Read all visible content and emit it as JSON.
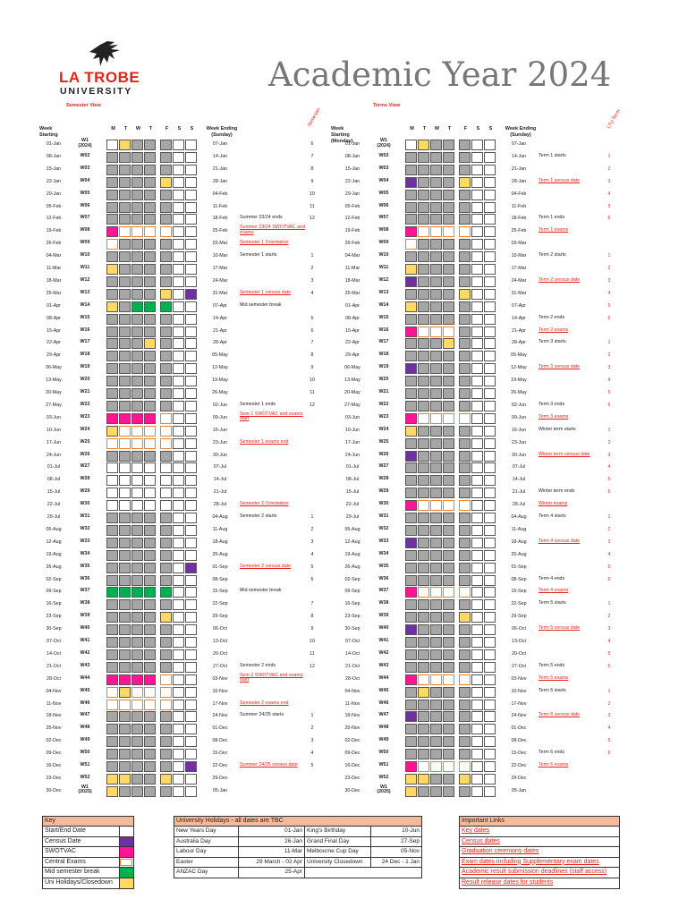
{
  "logo": {
    "line1": "LA TROBE",
    "line2": "UNIVERSITY"
  },
  "title": "Academic Year 2024",
  "semester_view": {
    "label": "Semester View",
    "rot_label": "Semester"
  },
  "terms_view": {
    "label": "Terms View",
    "rot_label": "LTU Term"
  },
  "headers": {
    "week_starting": "Week Starting",
    "week_starting_mon": "Week Starting (Monday)",
    "days": [
      "M",
      "T",
      "W",
      "T",
      "F",
      "S",
      "S"
    ],
    "week_ending": "Week Ending (Sunday)"
  },
  "colors": {
    "start_end": "#ffffff",
    "census": "#7030a0",
    "swotvac": "#ff1493",
    "central_exams": "#ffffff",
    "mid_break": "#00b050",
    "holidays": "#ffd966",
    "grey": "#a6a6a6",
    "exam_border": "#f4801f"
  },
  "weeks": [
    {
      "start": "01-Jan",
      "week": "W1 (2024)",
      "end": "07-Jan",
      "sem_event": "",
      "sem_num": "6",
      "term_event": "",
      "term_num": ""
    },
    {
      "start": "08-Jan",
      "week": "W02",
      "end": "14-Jan",
      "sem_event": "",
      "sem_num": "7",
      "term_event": "Term 1 starts",
      "term_num": "1"
    },
    {
      "start": "15-Jan",
      "week": "W03",
      "end": "21-Jan",
      "sem_event": "",
      "sem_num": "8",
      "term_event": "",
      "term_num": "2"
    },
    {
      "start": "22-Jan",
      "week": "W04",
      "end": "28-Jan",
      "sem_event": "",
      "sem_num": "9",
      "term_event": "Term 1 census date",
      "term_num": "3"
    },
    {
      "start": "29-Jan",
      "week": "W05",
      "end": "04-Feb",
      "sem_event": "",
      "sem_num": "10",
      "term_event": "",
      "term_num": "4"
    },
    {
      "start": "05-Feb",
      "week": "W06",
      "end": "11-Feb",
      "sem_event": "",
      "sem_num": "11",
      "term_event": "",
      "term_num": "5"
    },
    {
      "start": "12-Feb",
      "week": "W07",
      "end": "18-Feb",
      "sem_event": "Summer 23/24 ends",
      "sem_num": "12",
      "term_event": "Term 1 ends",
      "term_num": "6"
    },
    {
      "start": "19-Feb",
      "week": "W08",
      "end": "25-Feb",
      "sem_event": "Summer 23/24 SWOTVAC and exams",
      "sem_num": "",
      "term_event": "Term 1 exams",
      "term_num": ""
    },
    {
      "start": "26-Feb",
      "week": "W09",
      "end": "03-Mar",
      "sem_event": "Semester 1 Orientation",
      "sem_num": "",
      "term_event": "",
      "term_num": ""
    },
    {
      "start": "04-Mar",
      "week": "W10",
      "end": "10-Mar",
      "sem_event": "Semester 1 starts",
      "sem_num": "1",
      "term_event": "Term 2 starts",
      "term_num": "1"
    },
    {
      "start": "11-Mar",
      "week": "W11",
      "end": "17-Mar",
      "sem_event": "",
      "sem_num": "2",
      "term_event": "",
      "term_num": "2"
    },
    {
      "start": "18-Mar",
      "week": "W12",
      "end": "24-Mar",
      "sem_event": "",
      "sem_num": "3",
      "term_event": "Term 2 census date",
      "term_num": "3"
    },
    {
      "start": "25-Mar",
      "week": "W13",
      "end": "31-Mar",
      "sem_event": "Semester 1 census date",
      "sem_num": "4",
      "term_event": "",
      "term_num": "4"
    },
    {
      "start": "01-Apr",
      "week": "W14",
      "end": "07-Apr",
      "sem_event": "Mid semester break",
      "sem_num": "",
      "term_event": "",
      "term_num": "5"
    },
    {
      "start": "08-Apr",
      "week": "W15",
      "end": "14-Apr",
      "sem_event": "",
      "sem_num": "5",
      "term_event": "Term 2 ends",
      "term_num": "6"
    },
    {
      "start": "15-Apr",
      "week": "W16",
      "end": "21-Apr",
      "sem_event": "",
      "sem_num": "6",
      "term_event": "Term 2 exams",
      "term_num": ""
    },
    {
      "start": "22-Apr",
      "week": "W17",
      "end": "28-Apr",
      "sem_event": "",
      "sem_num": "7",
      "term_event": "Term 3 starts",
      "term_num": "1"
    },
    {
      "start": "29-Apr",
      "week": "W18",
      "end": "05-May",
      "sem_event": "",
      "sem_num": "8",
      "term_event": "",
      "term_num": "2"
    },
    {
      "start": "06-May",
      "week": "W19",
      "end": "12-May",
      "sem_event": "",
      "sem_num": "9",
      "term_event": "Term 3 census date",
      "term_num": "3"
    },
    {
      "start": "13-May",
      "week": "W20",
      "end": "19-May",
      "sem_event": "",
      "sem_num": "10",
      "term_event": "",
      "term_num": "4"
    },
    {
      "start": "20-May",
      "week": "W21",
      "end": "26-May",
      "sem_event": "",
      "sem_num": "11",
      "term_event": "",
      "term_num": "5"
    },
    {
      "start": "27-May",
      "week": "W22",
      "end": "02-Jun",
      "sem_event": "Semester 1 ends",
      "sem_num": "12",
      "term_event": "Term 3 ends",
      "term_num": "6"
    },
    {
      "start": "03-Jun",
      "week": "W23",
      "end": "09-Jun",
      "sem_event": "Sem 1 SWOTVAC and exams start",
      "sem_num": "",
      "term_event": "Term 3 exams",
      "term_num": ""
    },
    {
      "start": "10-Jun",
      "week": "W24",
      "end": "16-Jun",
      "sem_event": "",
      "sem_num": "",
      "term_event": "Winter term starts",
      "term_num": "1"
    },
    {
      "start": "17-Jun",
      "week": "W25",
      "end": "23-Jun",
      "sem_event": "Semester 1 exams end",
      "sem_num": "",
      "term_event": "",
      "term_num": "2"
    },
    {
      "start": "24-Jun",
      "week": "W26",
      "end": "30-Jun",
      "sem_event": "",
      "sem_num": "",
      "term_event": "Winter term census date",
      "term_num": "3"
    },
    {
      "start": "01-Jul",
      "week": "W27",
      "end": "07-Jul",
      "sem_event": "",
      "sem_num": "",
      "term_event": "",
      "term_num": "4"
    },
    {
      "start": "08-Jul",
      "week": "W28",
      "end": "14-Jul",
      "sem_event": "",
      "sem_num": "",
      "term_event": "",
      "term_num": "5"
    },
    {
      "start": "15-Jul",
      "week": "W29",
      "end": "21-Jul",
      "sem_event": "",
      "sem_num": "",
      "term_event": "Winter term ends",
      "term_num": "6"
    },
    {
      "start": "22-Jul",
      "week": "W30",
      "end": "28-Jul",
      "sem_event": "Semester 2 Orientation",
      "sem_num": "",
      "term_event": "Winter exams",
      "term_num": ""
    },
    {
      "start": "29-Jul",
      "week": "W31",
      "end": "04-Aug",
      "sem_event": "Semester 2 starts",
      "sem_num": "1",
      "term_event": "Term 4 starts",
      "term_num": "1"
    },
    {
      "start": "05-Aug",
      "week": "W32",
      "end": "11-Aug",
      "sem_event": "",
      "sem_num": "2",
      "term_event": "",
      "term_num": "2"
    },
    {
      "start": "12-Aug",
      "week": "W33",
      "end": "18-Aug",
      "sem_event": "",
      "sem_num": "3",
      "term_event": "Term 4 census date",
      "term_num": "3"
    },
    {
      "start": "19-Aug",
      "week": "W34",
      "end": "25-Aug",
      "sem_event": "",
      "sem_num": "4",
      "term_event": "",
      "term_num": "4"
    },
    {
      "start": "26-Aug",
      "week": "W35",
      "end": "01-Sep",
      "sem_event": "Semester 2 census date",
      "sem_num": "5",
      "term_event": "",
      "term_num": "5"
    },
    {
      "start": "02-Sep",
      "week": "W36",
      "end": "08-Sep",
      "sem_event": "",
      "sem_num": "6",
      "term_event": "Term 4 ends",
      "term_num": "6"
    },
    {
      "start": "09-Sep",
      "week": "W37",
      "end": "15-Sep",
      "sem_event": "Mid semester break",
      "sem_num": "",
      "term_event": "Term 4 exams",
      "term_num": ""
    },
    {
      "start": "16-Sep",
      "week": "W38",
      "end": "22-Sep",
      "sem_event": "",
      "sem_num": "7",
      "term_event": "Term 5 starts",
      "term_num": "1"
    },
    {
      "start": "23-Sep",
      "week": "W39",
      "end": "29-Sep",
      "sem_event": "",
      "sem_num": "8",
      "term_event": "",
      "term_num": "2"
    },
    {
      "start": "30-Sep",
      "week": "W40",
      "end": "06-Oct",
      "sem_event": "",
      "sem_num": "9",
      "term_event": "Term 5 census date",
      "term_num": "3"
    },
    {
      "start": "07-Oct",
      "week": "W41",
      "end": "13-Oct",
      "sem_event": "",
      "sem_num": "10",
      "term_event": "",
      "term_num": "4"
    },
    {
      "start": "14-Oct",
      "week": "W42",
      "end": "20-Oct",
      "sem_event": "",
      "sem_num": "11",
      "term_event": "",
      "term_num": "5"
    },
    {
      "start": "21-Oct",
      "week": "W43",
      "end": "27-Oct",
      "sem_event": "Semester 2 ends",
      "sem_num": "12",
      "term_event": "Term 5 ends",
      "term_num": "6"
    },
    {
      "start": "28-Oct",
      "week": "W44",
      "end": "03-Nov",
      "sem_event": "Sem 2 SWOTVAC and exams start",
      "sem_num": "",
      "term_event": "Term 5 exams",
      "term_num": ""
    },
    {
      "start": "04-Nov",
      "week": "W45",
      "end": "10-Nov",
      "sem_event": "",
      "sem_num": "",
      "term_event": "Term 6 starts",
      "term_num": "1"
    },
    {
      "start": "11-Nov",
      "week": "W46",
      "end": "17-Nov",
      "sem_event": "Semester 2 exams end",
      "sem_num": "",
      "term_event": "",
      "term_num": "2"
    },
    {
      "start": "18-Nov",
      "week": "W47",
      "end": "24-Nov",
      "sem_event": "Summer 24/25 starts",
      "sem_num": "1",
      "term_event": "Term 6 census date",
      "term_num": "3"
    },
    {
      "start": "25-Nov",
      "week": "W48",
      "end": "01-Dec",
      "sem_event": "",
      "sem_num": "2",
      "term_event": "",
      "term_num": "4"
    },
    {
      "start": "02-Dec",
      "week": "W49",
      "end": "08-Dec",
      "sem_event": "",
      "sem_num": "3",
      "term_event": "",
      "term_num": "5"
    },
    {
      "start": "09-Dec",
      "week": "W50",
      "end": "15-Dec",
      "sem_event": "",
      "sem_num": "4",
      "term_event": "Term 6 ends",
      "term_num": "6"
    },
    {
      "start": "16-Dec",
      "week": "W51",
      "end": "22-Dec",
      "sem_event": "Summer 24/25 census date",
      "sem_num": "5",
      "term_event": "Term 6 exams",
      "term_num": ""
    },
    {
      "start": "23-Dec",
      "week": "W52",
      "end": "29-Dec",
      "sem_event": "",
      "sem_num": "",
      "term_event": "",
      "term_num": ""
    },
    {
      "start": "30-Dec",
      "week": "W1 (2025)",
      "end": "05-Jan",
      "sem_event": "",
      "sem_num": "",
      "term_event": "",
      "term_num": ""
    }
  ],
  "key": {
    "title": "Key",
    "items": [
      "Start/End Date",
      "Census Date",
      "SWOTVAC",
      "Central Exams",
      "Mid semester break",
      "Uni Holidays/Closedown"
    ]
  },
  "holidays": {
    "title": "University Holidays - all dates are TBC",
    "rows": [
      {
        "n1": "New Years Day",
        "d1": "01-Jan",
        "n2": "King's Birthday",
        "d2": "10-Jun"
      },
      {
        "n1": "Australia Day",
        "d1": "26-Jan",
        "n2": "Grand Final Day",
        "d2": "27-Sep"
      },
      {
        "n1": "Labour Day",
        "d1": "11-Mar",
        "n2": "Melbourne Cup Day",
        "d2": "05-Nov"
      },
      {
        "n1": "Easter",
        "d1": "29 March - 02 Apr",
        "n2": "University Closedown",
        "d2": "24 Dec - 1 Jan"
      },
      {
        "n1": "ANZAC Day",
        "d1": "25-Apr",
        "n2": "",
        "d2": ""
      }
    ]
  },
  "links": {
    "title": "Important Links",
    "items": [
      "Key dates",
      "Census dates",
      "Graduation ceremony dates",
      "Exam dates including Supplementary exam dates",
      "Academic result submission deadlines (staff access)",
      "Result release dates for students"
    ]
  }
}
